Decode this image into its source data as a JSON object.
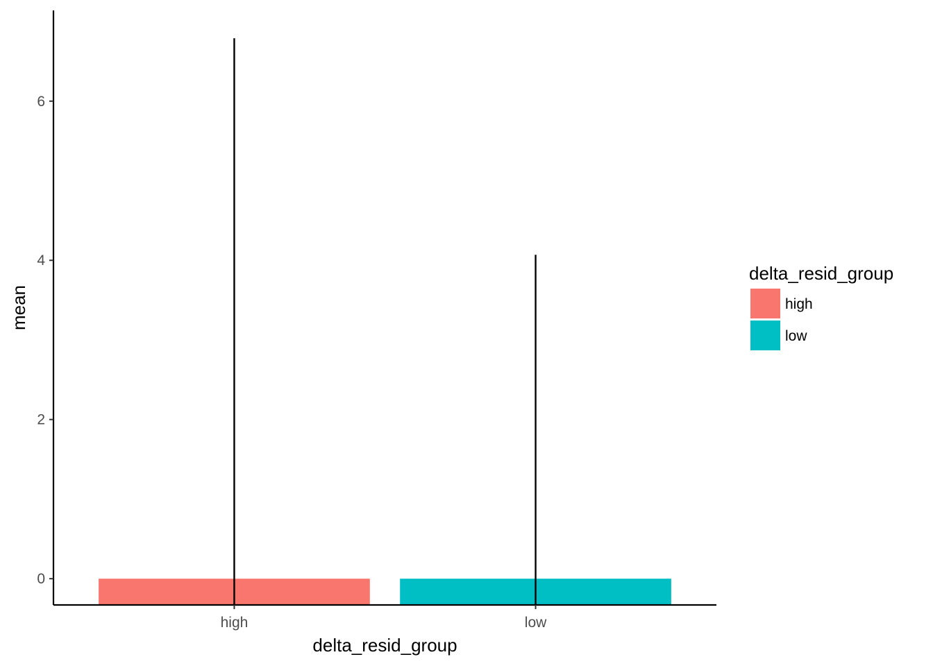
{
  "chart_data": {
    "type": "bar",
    "title": "",
    "xlabel": "delta_resid_group",
    "ylabel": "mean",
    "categories": [
      "high",
      "low"
    ],
    "values": [
      0.0,
      0.0
    ],
    "error_bars": {
      "low": [
        -0.33,
        -0.33
      ],
      "high": [
        6.79,
        4.07
      ]
    },
    "ylim": [
      -0.33,
      7.14
    ],
    "y_ticks": [
      0,
      2,
      4,
      6
    ],
    "grid": false,
    "legend": {
      "title": "delta_resid_group",
      "placement": "right",
      "entries": [
        {
          "label": "high",
          "color": "#F8766D"
        },
        {
          "label": "low",
          "color": "#00BFC4"
        }
      ]
    },
    "colors": {
      "high": "#F8766D",
      "low": "#00BFC4"
    }
  }
}
